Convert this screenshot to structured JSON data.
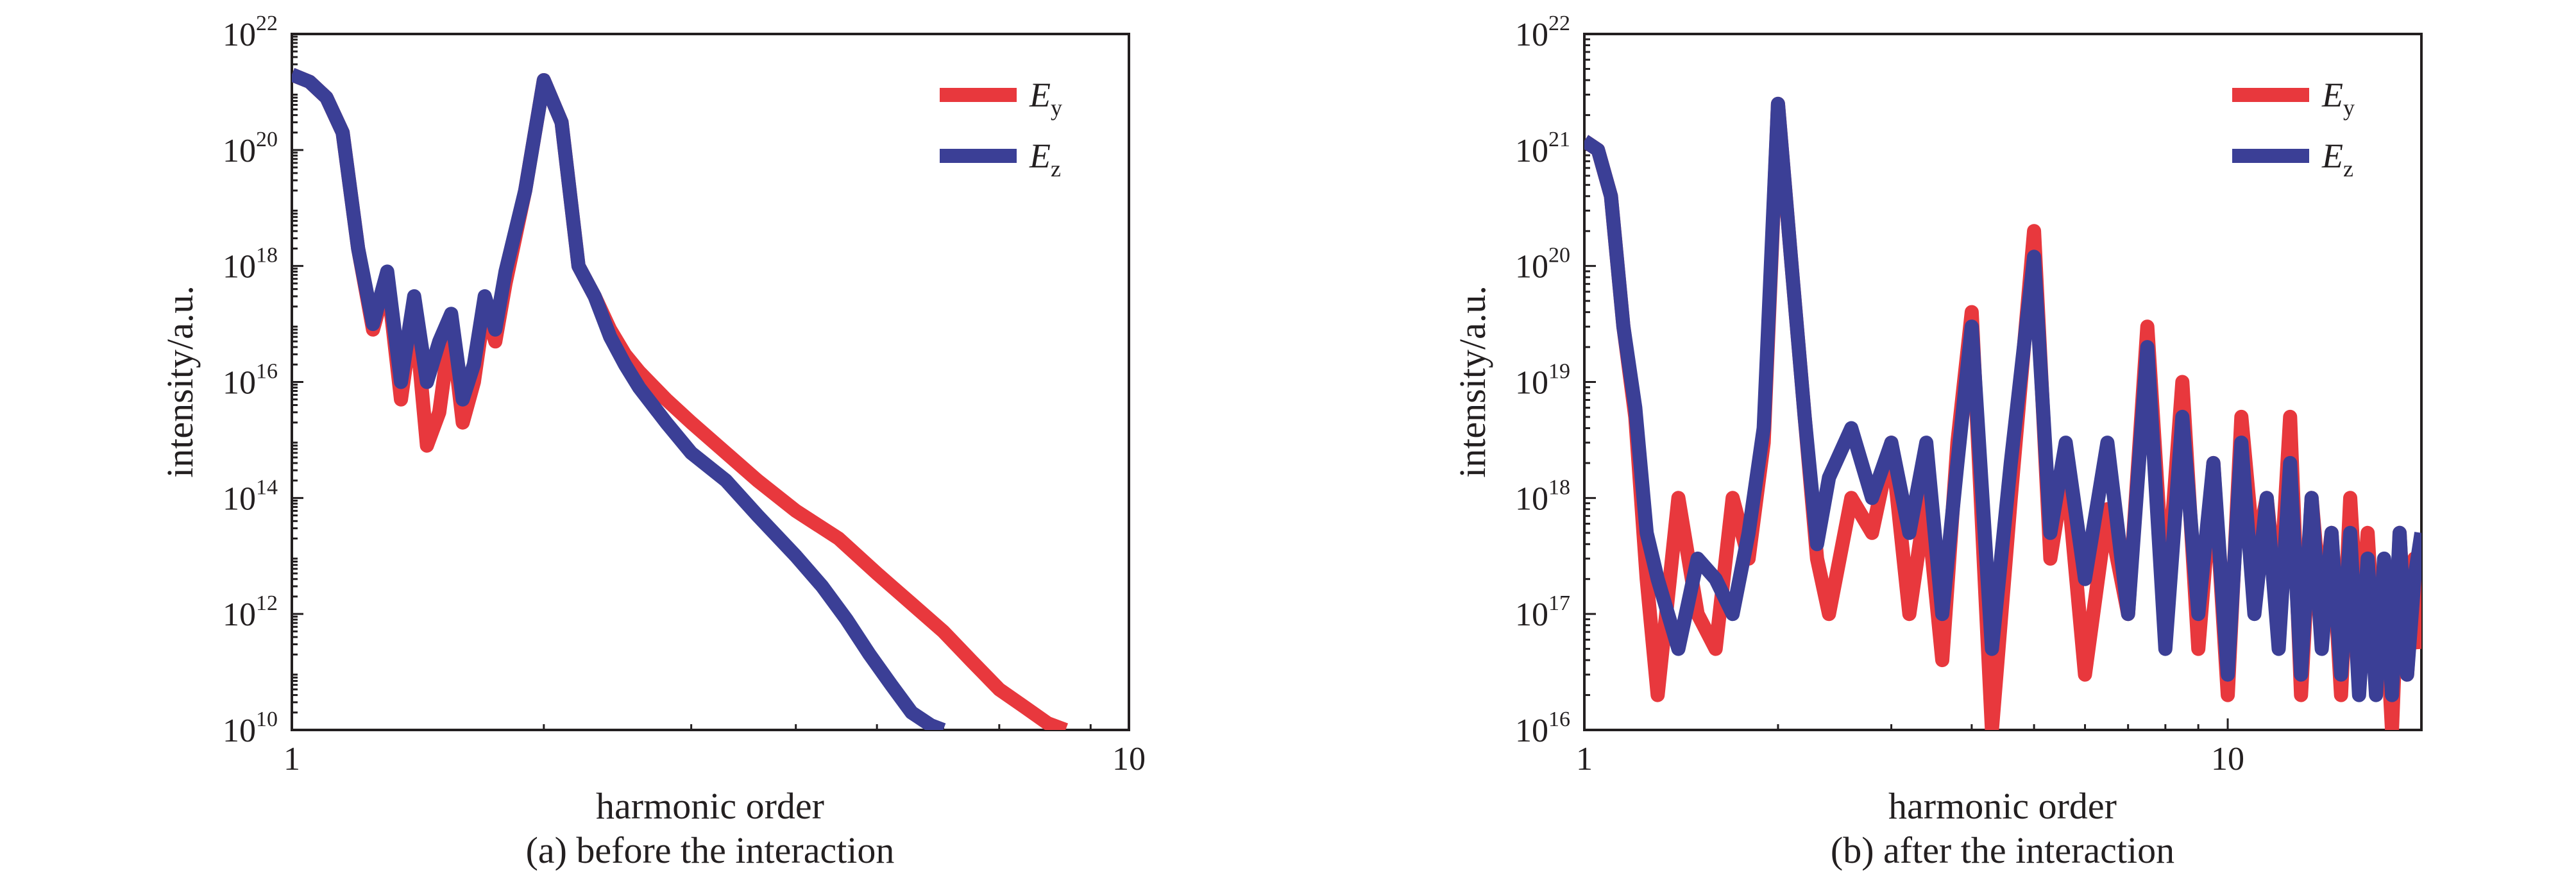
{
  "chart_data": [
    {
      "type": "line",
      "panel": "a",
      "caption": "(a) before the interaction",
      "xlabel": "harmonic order",
      "ylabel": "intensity/a.u.",
      "x_scale": "log",
      "y_scale": "log",
      "xlim": [
        1,
        10
      ],
      "ylim": [
        10000000000.0,
        1e+22
      ],
      "x_ticks": [
        {
          "value": 1,
          "label": "1"
        },
        {
          "value": 10,
          "label": "10"
        }
      ],
      "y_ticks": [
        {
          "value": 10000000000.0,
          "base": "10",
          "exp": "10"
        },
        {
          "value": 1000000000000.0,
          "base": "10",
          "exp": "12"
        },
        {
          "value": 100000000000000.0,
          "base": "10",
          "exp": "14"
        },
        {
          "value": 1e+16,
          "base": "10",
          "exp": "16"
        },
        {
          "value": 1e+18,
          "base": "10",
          "exp": "18"
        },
        {
          "value": 1e+20,
          "base": "10",
          "exp": "20"
        },
        {
          "value": 1e+22,
          "base": "10",
          "exp": "22"
        }
      ],
      "legend": {
        "position": "top-right"
      },
      "series": [
        {
          "name": "E_y",
          "label_main": "E",
          "label_sub": "y",
          "color": "#e8383d",
          "x": [
            1.0,
            1.05,
            1.1,
            1.15,
            1.2,
            1.25,
            1.3,
            1.35,
            1.4,
            1.45,
            1.5,
            1.55,
            1.6,
            1.65,
            1.7,
            1.75,
            1.8,
            1.9,
            2.0,
            2.1,
            2.2,
            2.3,
            2.4,
            2.5,
            2.6,
            2.8,
            3.0,
            3.3,
            3.6,
            4.0,
            4.5,
            5.0,
            5.5,
            6.0,
            6.5,
            7.0,
            7.5,
            8.0,
            8.4
          ],
          "y": [
            2e+21,
            1.5e+21,
            8e+20,
            2e+20,
            2e+18,
            8e+16,
            6e+17,
            5000000000000000.0,
            2e+17,
            800000000000000.0,
            3000000000000000.0,
            1e+17,
            2000000000000000.0,
            1e+16,
            2e+17,
            5e+16,
            5e+17,
            2e+19,
            1.6e+21,
            3e+20,
            1e+18,
            3e+17,
            8e+16,
            3e+16,
            1.5e+16,
            5000000000000000.0,
            2000000000000000.0,
            600000000000000.0,
            200000000000000.0,
            60000000000000.0,
            20000000000000.0,
            5000000000000.0,
            1500000000000.0,
            500000000000.0,
            150000000000.0,
            50000000000.0,
            25000000000.0,
            13000000000.0,
            10000000000.0
          ]
        },
        {
          "name": "E_z",
          "label_main": "E",
          "label_sub": "z",
          "color": "#3b3f96",
          "x": [
            1.0,
            1.05,
            1.1,
            1.15,
            1.2,
            1.25,
            1.3,
            1.35,
            1.4,
            1.45,
            1.5,
            1.55,
            1.6,
            1.65,
            1.7,
            1.75,
            1.8,
            1.9,
            2.0,
            2.1,
            2.2,
            2.3,
            2.4,
            2.5,
            2.6,
            2.8,
            3.0,
            3.3,
            3.6,
            4.0,
            4.3,
            4.6,
            4.9,
            5.2,
            5.5,
            5.8,
            6.0
          ],
          "y": [
            2e+21,
            1.5e+21,
            8e+20,
            2e+20,
            2e+18,
            1e+17,
            8e+17,
            1e+16,
            3e+17,
            1e+16,
            5e+16,
            1.5e+17,
            5000000000000000.0,
            2e+16,
            3e+17,
            8e+16,
            8e+17,
            2e+19,
            1.6e+21,
            3e+20,
            1e+18,
            3e+17,
            6e+16,
            2e+16,
            8000000000000000.0,
            2000000000000000.0,
            600000000000000.0,
            200000000000000.0,
            50000000000000.0,
            10000000000000.0,
            3000000000000.0,
            800000000000.0,
            200000000000.0,
            60000000000.0,
            20000000000.0,
            12000000000.0,
            10000000000.0
          ]
        }
      ]
    },
    {
      "type": "line",
      "panel": "b",
      "caption": "(b) after the interaction",
      "xlabel": "harmonic order",
      "ylabel": "intensity/a.u.",
      "x_scale": "log",
      "y_scale": "log",
      "xlim": [
        1,
        20
      ],
      "ylim": [
        1e+16,
        1e+22
      ],
      "x_ticks": [
        {
          "value": 1,
          "label": "1"
        },
        {
          "value": 10,
          "label": "10"
        }
      ],
      "y_ticks": [
        {
          "value": 1e+16,
          "base": "10",
          "exp": "16"
        },
        {
          "value": 1e+17,
          "base": "10",
          "exp": "17"
        },
        {
          "value": 1e+18,
          "base": "10",
          "exp": "18"
        },
        {
          "value": 1e+19,
          "base": "10",
          "exp": "19"
        },
        {
          "value": 1e+20,
          "base": "10",
          "exp": "20"
        },
        {
          "value": 1e+21,
          "base": "10",
          "exp": "21"
        },
        {
          "value": 1e+22,
          "base": "10",
          "exp": "22"
        }
      ],
      "legend": {
        "position": "top-right"
      },
      "series": [
        {
          "name": "E_y",
          "label_main": "E",
          "label_sub": "y",
          "color": "#e8383d",
          "x": [
            1.0,
            1.05,
            1.1,
            1.15,
            1.2,
            1.25,
            1.3,
            1.4,
            1.5,
            1.6,
            1.7,
            1.8,
            1.9,
            2.0,
            2.1,
            2.2,
            2.3,
            2.4,
            2.6,
            2.8,
            3.0,
            3.2,
            3.4,
            3.6,
            3.8,
            4.0,
            4.3,
            4.6,
            5.0,
            5.3,
            5.6,
            6.0,
            6.5,
            7.0,
            7.5,
            8.0,
            8.5,
            9.0,
            9.5,
            10.0,
            10.5,
            11.0,
            11.5,
            12.0,
            12.5,
            13.0,
            13.5,
            14.0,
            14.5,
            15.0,
            15.5,
            16.0,
            16.5,
            17.0,
            17.5,
            18.0,
            18.5,
            19.0,
            19.5,
            20.0
          ],
          "y": [
            1.2e+21,
            1e+21,
            4e+20,
            3e+19,
            5e+18,
            2e+17,
            2e+16,
            1e+18,
            1e+17,
            5e+16,
            1e+18,
            3e+17,
            3e+18,
            2.5e+21,
            1e+20,
            5e+18,
            3e+17,
            1e+17,
            1e+18,
            5e+17,
            3e+18,
            1e+17,
            1e+18,
            4e+16,
            3e+18,
            4e+19,
            1e+16,
            1e+18,
            2e+20,
            3e+17,
            2e+18,
            3e+16,
            8e+17,
            1e+17,
            3e+19,
            1e+17,
            1e+19,
            5e+16,
            2e+18,
            2e+16,
            5e+18,
            3e+17,
            1e+18,
            1e+17,
            5e+18,
            2e+16,
            1e+18,
            1e+17,
            5e+17,
            2e+16,
            1e+18,
            5e+16,
            5e+17,
            3e+16,
            2e+17,
            1e+16,
            5e+17,
            3e+16,
            3e+17,
            5e+16
          ]
        },
        {
          "name": "E_z",
          "label_main": "E",
          "label_sub": "z",
          "color": "#3b3f96",
          "x": [
            1.0,
            1.05,
            1.1,
            1.15,
            1.2,
            1.25,
            1.3,
            1.4,
            1.5,
            1.6,
            1.7,
            1.8,
            1.9,
            2.0,
            2.1,
            2.2,
            2.3,
            2.4,
            2.6,
            2.8,
            3.0,
            3.2,
            3.4,
            3.6,
            3.8,
            4.0,
            4.3,
            4.6,
            5.0,
            5.3,
            5.6,
            6.0,
            6.5,
            7.0,
            7.5,
            8.0,
            8.5,
            9.0,
            9.5,
            10.0,
            10.5,
            11.0,
            11.5,
            12.0,
            12.5,
            13.0,
            13.5,
            14.0,
            14.5,
            15.0,
            15.5,
            16.0,
            16.5,
            17.0,
            17.5,
            18.0,
            18.5,
            19.0,
            19.5,
            20.0
          ],
          "y": [
            1.2e+21,
            1e+21,
            4e+20,
            3e+19,
            6e+18,
            5e+17,
            2e+17,
            5e+16,
            3e+17,
            2e+17,
            1e+17,
            5e+17,
            4e+18,
            2.5e+21,
            1e+20,
            5e+18,
            4e+17,
            1.5e+18,
            4e+18,
            1e+18,
            3e+18,
            5e+17,
            3e+18,
            1e+17,
            2e+18,
            3e+19,
            5e+16,
            2e+18,
            1.2e+20,
            5e+17,
            3e+18,
            2e+17,
            3e+18,
            1e+17,
            2e+19,
            5e+16,
            5e+18,
            1e+17,
            2e+18,
            3e+16,
            3e+18,
            1e+17,
            1e+18,
            5e+16,
            2e+18,
            3e+16,
            1e+18,
            5e+16,
            5e+17,
            3e+16,
            5e+17,
            2e+16,
            3e+17,
            2e+16,
            3e+17,
            2e+16,
            5e+17,
            3e+16,
            2e+17,
            5e+17
          ]
        }
      ]
    }
  ]
}
